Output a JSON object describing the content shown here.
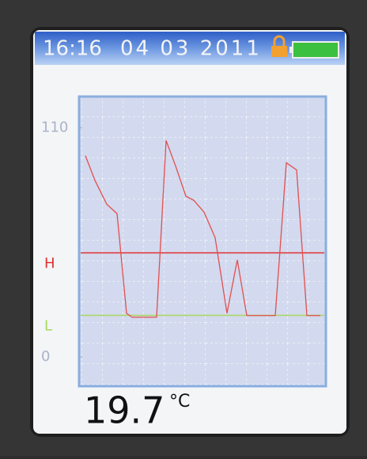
{
  "status": {
    "time": "16:16",
    "date": "04 03 2011"
  },
  "chart_data": {
    "type": "line",
    "color": "#e05050",
    "x": [
      4,
      16,
      31,
      44,
      56,
      63,
      81,
      94,
      106,
      118,
      131,
      141,
      154,
      168,
      183,
      196,
      208,
      226,
      244,
      258,
      271,
      284,
      301
    ],
    "values": [
      96.6,
      84.8,
      73.3,
      68.8,
      21,
      19.1,
      19.1,
      19.1,
      103.9,
      91.7,
      77.2,
      75.2,
      69.5,
      57.3,
      21,
      46.6,
      19.9,
      19.9,
      19.9,
      93.2,
      89.8,
      19.9,
      19.9
    ],
    "xlim": [
      0,
      308
    ],
    "ylim": [
      -14,
      125
    ],
    "yticks": [
      0,
      110
    ],
    "grid": true,
    "thresholds": [
      {
        "label": "H",
        "value": 50,
        "color": "#e03030"
      },
      {
        "label": "L",
        "value": 20,
        "color": "#a8d860"
      }
    ]
  },
  "display": {
    "value": 19.7,
    "unit": "°C"
  }
}
